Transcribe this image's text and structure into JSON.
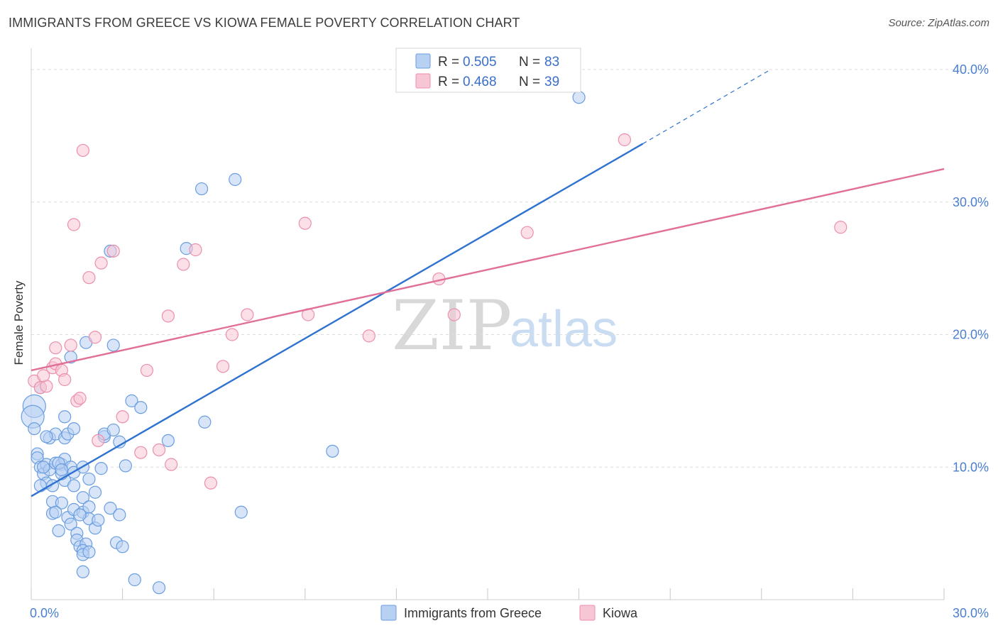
{
  "header": {
    "title": "IMMIGRANTS FROM GREECE VS KIOWA FEMALE POVERTY CORRELATION CHART",
    "source": "Source: ZipAtlas.com"
  },
  "colors": {
    "greece": "#6a9ee0",
    "greece_fill": "#b8d0f2",
    "greece_line": "#2f72cf",
    "kiowa": "#ec8fac",
    "kiowa_fill": "#f7c6d5",
    "kiowa_line": "#e16f98",
    "tick": "#4a7fd0",
    "grid": "#dddddd"
  },
  "legend": {
    "r_label": "R =",
    "n_label": "N =",
    "greece": {
      "r": "0.505",
      "n": "83"
    },
    "kiowa": {
      "r": "0.468",
      "n": "39"
    }
  },
  "watermark": {
    "zip": "ZIP",
    "atlas": "atlas"
  },
  "chart_data": {
    "type": "scatter",
    "title": "IMMIGRANTS FROM GREECE VS KIOWA FEMALE POVERTY CORRELATION CHART",
    "xlabel": "",
    "ylabel": "Female Poverty",
    "xlim": [
      0,
      30
    ],
    "ylim": [
      0,
      40
    ],
    "x_ticks": [
      {
        "v": 0,
        "label": "0.0%"
      },
      {
        "v": 30,
        "label": "30.0%"
      }
    ],
    "y_ticks": [
      {
        "v": 10,
        "label": "10.0%"
      },
      {
        "v": 20,
        "label": "20.0%"
      },
      {
        "v": 30,
        "label": "30.0%"
      },
      {
        "v": 40,
        "label": "40.0%"
      }
    ],
    "series": [
      {
        "name": "Immigrants from Greece",
        "r": 0.505,
        "n": 83,
        "trend": {
          "x0": 0,
          "y0": 7.8,
          "x1": 20.1,
          "y1": 34.4,
          "dash_x1": 24.3,
          "dash_y1": 40.0
        },
        "points": [
          [
            0.1,
            14.6
          ],
          [
            0.05,
            13.8
          ],
          [
            0.1,
            12.9
          ],
          [
            0.3,
            16.0
          ],
          [
            0.2,
            11.0
          ],
          [
            0.2,
            10.7
          ],
          [
            0.3,
            10.0
          ],
          [
            0.4,
            9.5
          ],
          [
            0.5,
            10.2
          ],
          [
            0.6,
            9.8
          ],
          [
            0.5,
            8.8
          ],
          [
            0.7,
            8.6
          ],
          [
            0.3,
            8.6
          ],
          [
            0.6,
            12.2
          ],
          [
            0.8,
            12.5
          ],
          [
            0.8,
            10.3
          ],
          [
            1.0,
            10.2
          ],
          [
            1.1,
            9.0
          ],
          [
            1.0,
            9.5
          ],
          [
            1.1,
            12.2
          ],
          [
            1.1,
            13.8
          ],
          [
            1.2,
            12.5
          ],
          [
            1.1,
            10.6
          ],
          [
            1.3,
            10.0
          ],
          [
            1.4,
            9.6
          ],
          [
            1.4,
            12.9
          ],
          [
            1.4,
            8.6
          ],
          [
            0.7,
            7.4
          ],
          [
            1.0,
            7.3
          ],
          [
            0.7,
            6.5
          ],
          [
            0.8,
            6.6
          ],
          [
            1.2,
            6.2
          ],
          [
            1.4,
            6.8
          ],
          [
            1.3,
            5.7
          ],
          [
            0.9,
            5.2
          ],
          [
            1.5,
            5.0
          ],
          [
            1.7,
            7.7
          ],
          [
            1.7,
            6.6
          ],
          [
            1.9,
            7.0
          ],
          [
            1.9,
            6.1
          ],
          [
            1.5,
            4.5
          ],
          [
            1.6,
            4.0
          ],
          [
            1.8,
            4.2
          ],
          [
            1.7,
            3.7
          ],
          [
            1.7,
            3.4
          ],
          [
            1.9,
            3.6
          ],
          [
            2.1,
            5.4
          ],
          [
            1.7,
            2.1
          ],
          [
            2.1,
            8.1
          ],
          [
            2.3,
            9.9
          ],
          [
            1.9,
            9.1
          ],
          [
            1.7,
            10.0
          ],
          [
            2.4,
            12.3
          ],
          [
            2.4,
            12.5
          ],
          [
            2.7,
            12.8
          ],
          [
            2.9,
            11.9
          ],
          [
            3.1,
            10.1
          ],
          [
            2.6,
            6.9
          ],
          [
            2.9,
            6.4
          ],
          [
            2.8,
            4.3
          ],
          [
            3.0,
            4.0
          ],
          [
            3.4,
            1.5
          ],
          [
            4.2,
            0.9
          ],
          [
            3.3,
            15.0
          ],
          [
            3.6,
            14.5
          ],
          [
            4.5,
            12.0
          ],
          [
            5.7,
            13.4
          ],
          [
            1.8,
            19.4
          ],
          [
            1.3,
            18.3
          ],
          [
            2.7,
            19.2
          ],
          [
            2.6,
            26.3
          ],
          [
            5.1,
            26.5
          ],
          [
            5.6,
            31.0
          ],
          [
            6.7,
            31.7
          ],
          [
            6.9,
            6.6
          ],
          [
            9.9,
            11.2
          ],
          [
            18.0,
            37.9
          ],
          [
            0.9,
            10.3
          ],
          [
            1.0,
            9.8
          ],
          [
            0.4,
            10.0
          ],
          [
            0.5,
            12.3
          ],
          [
            2.2,
            6.0
          ],
          [
            1.6,
            6.4
          ]
        ]
      },
      {
        "name": "Kiowa",
        "r": 0.468,
        "n": 39,
        "trend": {
          "x0": 0,
          "y0": 17.3,
          "x1": 30,
          "y1": 32.5
        },
        "points": [
          [
            0.1,
            16.5
          ],
          [
            0.3,
            16.0
          ],
          [
            0.5,
            16.1
          ],
          [
            0.4,
            16.9
          ],
          [
            0.7,
            17.5
          ],
          [
            0.8,
            17.8
          ],
          [
            1.0,
            17.3
          ],
          [
            1.1,
            16.6
          ],
          [
            0.8,
            19.0
          ],
          [
            1.3,
            19.2
          ],
          [
            1.5,
            15.0
          ],
          [
            1.6,
            15.2
          ],
          [
            2.1,
            19.8
          ],
          [
            1.9,
            24.3
          ],
          [
            1.4,
            28.3
          ],
          [
            1.7,
            33.9
          ],
          [
            2.3,
            25.4
          ],
          [
            2.7,
            26.3
          ],
          [
            3.0,
            13.8
          ],
          [
            2.2,
            12.0
          ],
          [
            3.6,
            11.1
          ],
          [
            3.8,
            17.3
          ],
          [
            4.2,
            11.3
          ],
          [
            4.6,
            10.2
          ],
          [
            4.5,
            21.4
          ],
          [
            5.0,
            25.3
          ],
          [
            5.4,
            26.4
          ],
          [
            5.9,
            8.8
          ],
          [
            6.3,
            17.6
          ],
          [
            6.6,
            20.0
          ],
          [
            7.1,
            21.5
          ],
          [
            9.0,
            28.4
          ],
          [
            9.1,
            21.5
          ],
          [
            11.1,
            19.9
          ],
          [
            13.4,
            24.2
          ],
          [
            13.9,
            21.5
          ],
          [
            16.3,
            27.7
          ],
          [
            19.5,
            34.7
          ],
          [
            26.6,
            28.1
          ]
        ]
      }
    ]
  }
}
